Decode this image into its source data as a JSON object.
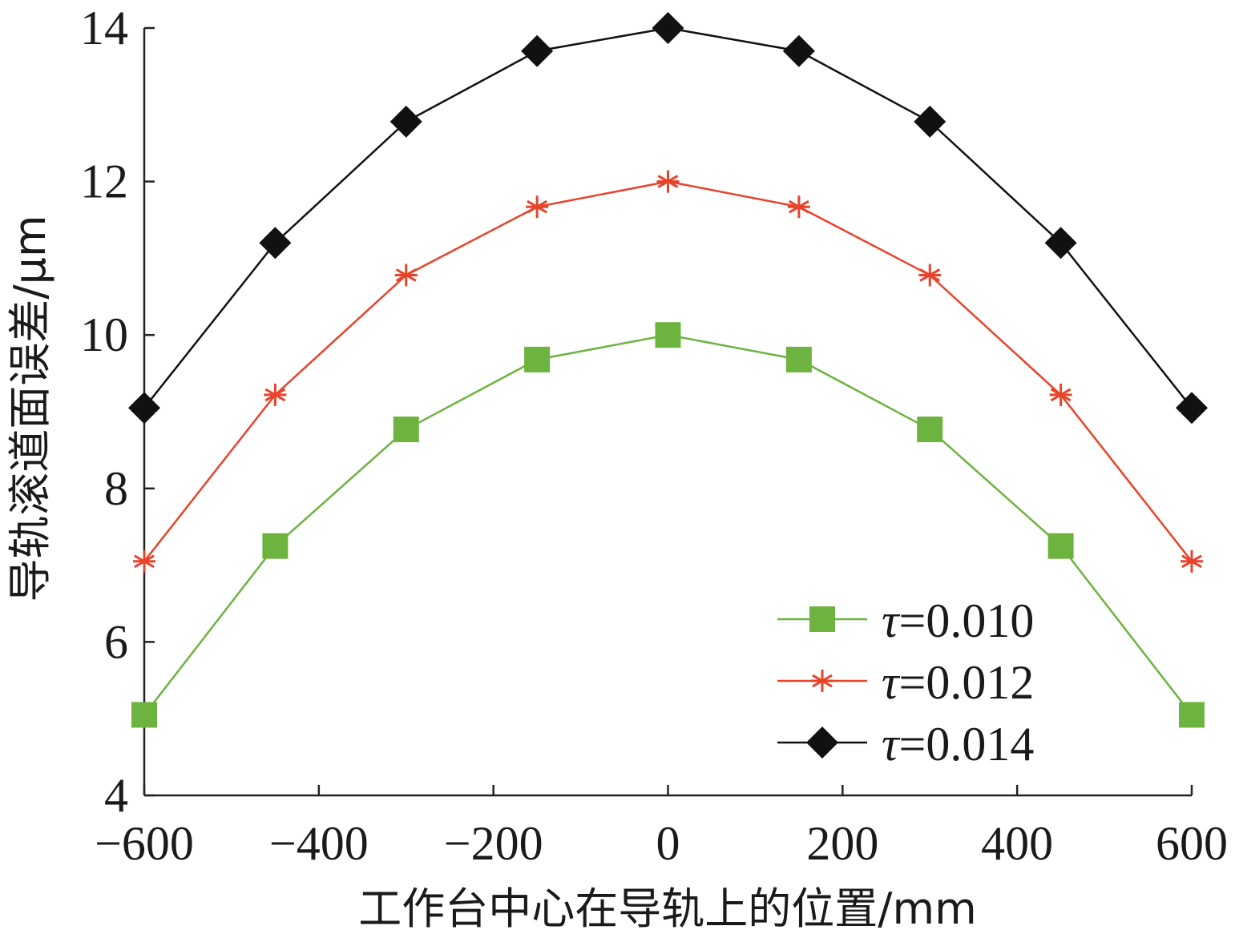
{
  "chart_data": {
    "type": "line",
    "xlabel": "工作台中心在导轨上的位置/mm",
    "ylabel": "导轨滚道面误差/μm",
    "xlim": [
      -600,
      600
    ],
    "ylim": [
      4,
      14
    ],
    "x_ticks": [
      -600,
      -400,
      -200,
      0,
      200,
      400,
      600
    ],
    "x_tick_labels": [
      "−600",
      "−400",
      "−200",
      "0",
      "200",
      "400",
      "600"
    ],
    "y_ticks": [
      4,
      6,
      8,
      10,
      12,
      14
    ],
    "y_tick_labels": [
      "4",
      "6",
      "8",
      "10",
      "12",
      "14"
    ],
    "x": [
      -600,
      -450,
      -300,
      -150,
      0,
      150,
      300,
      450,
      600
    ],
    "series": [
      {
        "name": "τ=0.010",
        "legend_symbol": "τ",
        "legend_value": "=0.010",
        "color": "#6db33f",
        "marker": "square",
        "values": [
          5.05,
          7.25,
          8.77,
          9.68,
          10.0,
          9.68,
          8.77,
          7.25,
          5.05
        ]
      },
      {
        "name": "τ=0.012",
        "legend_symbol": "τ",
        "legend_value": "=0.012",
        "color": "#e8432b",
        "marker": "asterisk",
        "values": [
          7.05,
          9.22,
          10.78,
          11.67,
          12.0,
          11.67,
          10.78,
          9.22,
          7.05
        ]
      },
      {
        "name": "τ=0.014",
        "legend_symbol": "τ",
        "legend_value": "=0.014",
        "color": "#111111",
        "marker": "diamond",
        "values": [
          9.05,
          11.2,
          12.78,
          13.7,
          14.0,
          13.7,
          12.78,
          11.2,
          9.05
        ]
      }
    ],
    "legend_position": "bottom-right",
    "grid": false
  }
}
